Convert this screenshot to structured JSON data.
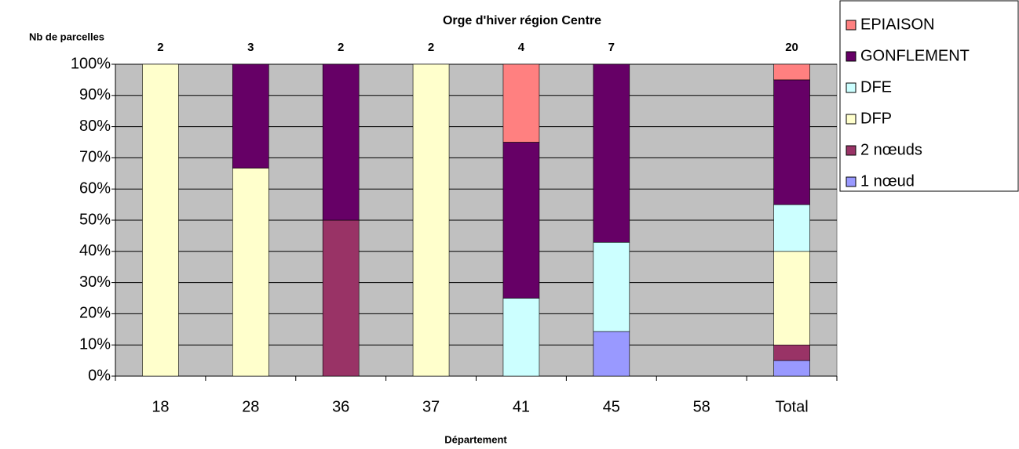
{
  "chart_data": {
    "type": "stacked-bar",
    "title": "Orge d'hiver région Centre",
    "y_annotation": "Nb de parcelles",
    "x_label": "Département",
    "categories": [
      "18",
      "28",
      "36",
      "37",
      "41",
      "45",
      "58",
      "Total"
    ],
    "counts": [
      2,
      3,
      2,
      2,
      4,
      7,
      null,
      20
    ],
    "series": [
      {
        "name": "1 nœud",
        "color": "#9999ff",
        "values": [
          0,
          0,
          0,
          0,
          0,
          14.3,
          0,
          5
        ]
      },
      {
        "name": "2 nœuds",
        "color": "#993366",
        "values": [
          0,
          0,
          50,
          0,
          0,
          0,
          0,
          5
        ]
      },
      {
        "name": "DFP",
        "color": "#ffffcc",
        "values": [
          100,
          66.7,
          0,
          100,
          0,
          0,
          0,
          30
        ]
      },
      {
        "name": "DFE",
        "color": "#ccffff",
        "values": [
          0,
          0,
          0,
          0,
          25,
          28.6,
          0,
          15
        ]
      },
      {
        "name": "GONFLEMENT",
        "color": "#660066",
        "values": [
          0,
          33.3,
          50,
          0,
          50,
          57.1,
          0,
          40
        ]
      },
      {
        "name": "EPIAISON",
        "color": "#ff8080",
        "values": [
          0,
          0,
          0,
          0,
          25,
          0,
          0,
          5
        ]
      }
    ],
    "ylim": [
      0,
      100
    ],
    "yticks": [
      {
        "value": 0,
        "label": "0%"
      },
      {
        "value": 10,
        "label": "10%"
      },
      {
        "value": 20,
        "label": "20%"
      },
      {
        "value": 30,
        "label": "30%"
      },
      {
        "value": 40,
        "label": "40%"
      },
      {
        "value": 50,
        "label": "50%"
      },
      {
        "value": 60,
        "label": "60%"
      },
      {
        "value": 70,
        "label": "70%"
      },
      {
        "value": 80,
        "label": "80%"
      },
      {
        "value": 90,
        "label": "90%"
      },
      {
        "value": 100,
        "label": "100%"
      }
    ],
    "grid": true,
    "plot_background": "#c0c0c0",
    "legend": "top-right"
  }
}
